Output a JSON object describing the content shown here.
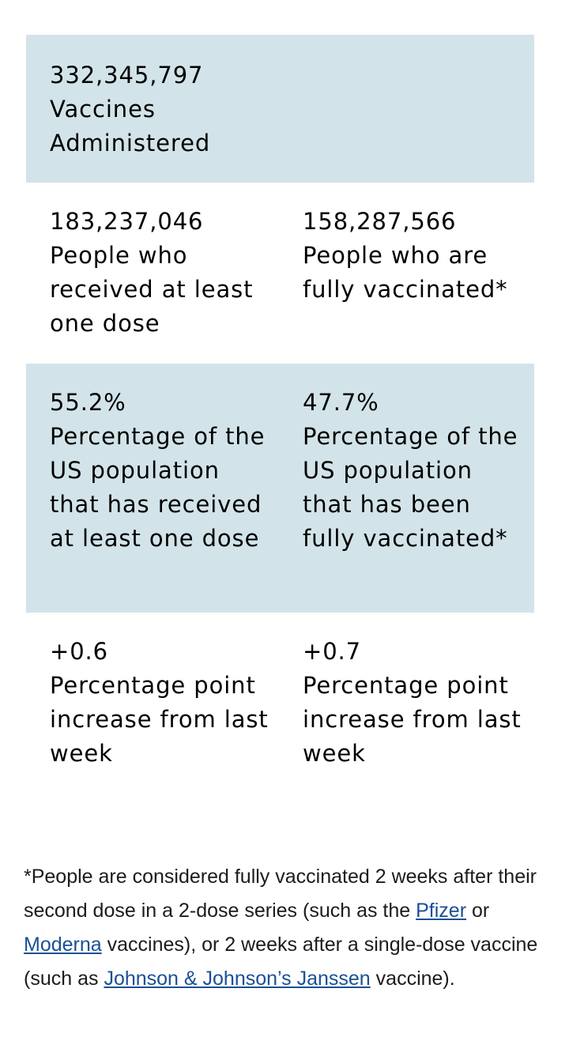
{
  "summary": {
    "total": {
      "value": "332,345,797",
      "label": "Vaccines Administered"
    },
    "at_least_one": {
      "value": "183,237,046",
      "label": "People who received at least one dose"
    },
    "fully": {
      "value": "158,287,566",
      "label": "People who are fully vaccinated*"
    },
    "pct_at_least_one": {
      "value": "55.2%",
      "label": "Percentage of the US population that has received at least one dose"
    },
    "pct_fully": {
      "value": "47.7%",
      "label": "Percentage of the US population that has been fully vaccinated*"
    },
    "change_at_least_one": {
      "value": "+0.6",
      "label": "Percentage point increase from last week"
    },
    "change_fully": {
      "value": "+0.7",
      "label": "Percentage point increase from last week"
    }
  },
  "footnote": {
    "part1": "*People are considered fully vaccinated 2 weeks after their second dose in a 2-dose series (such as the ",
    "link_pfizer": "Pfizer",
    "part2": " or ",
    "link_moderna": "Moderna",
    "part3": " vaccines), or 2 weeks after a single-dose vaccine (such as ",
    "link_jj": "Johnson & Johnson’s Janssen",
    "part4": " vaccine)."
  },
  "colors": {
    "shaded_row": "#d2e4e9",
    "link": "#1a4f96"
  }
}
